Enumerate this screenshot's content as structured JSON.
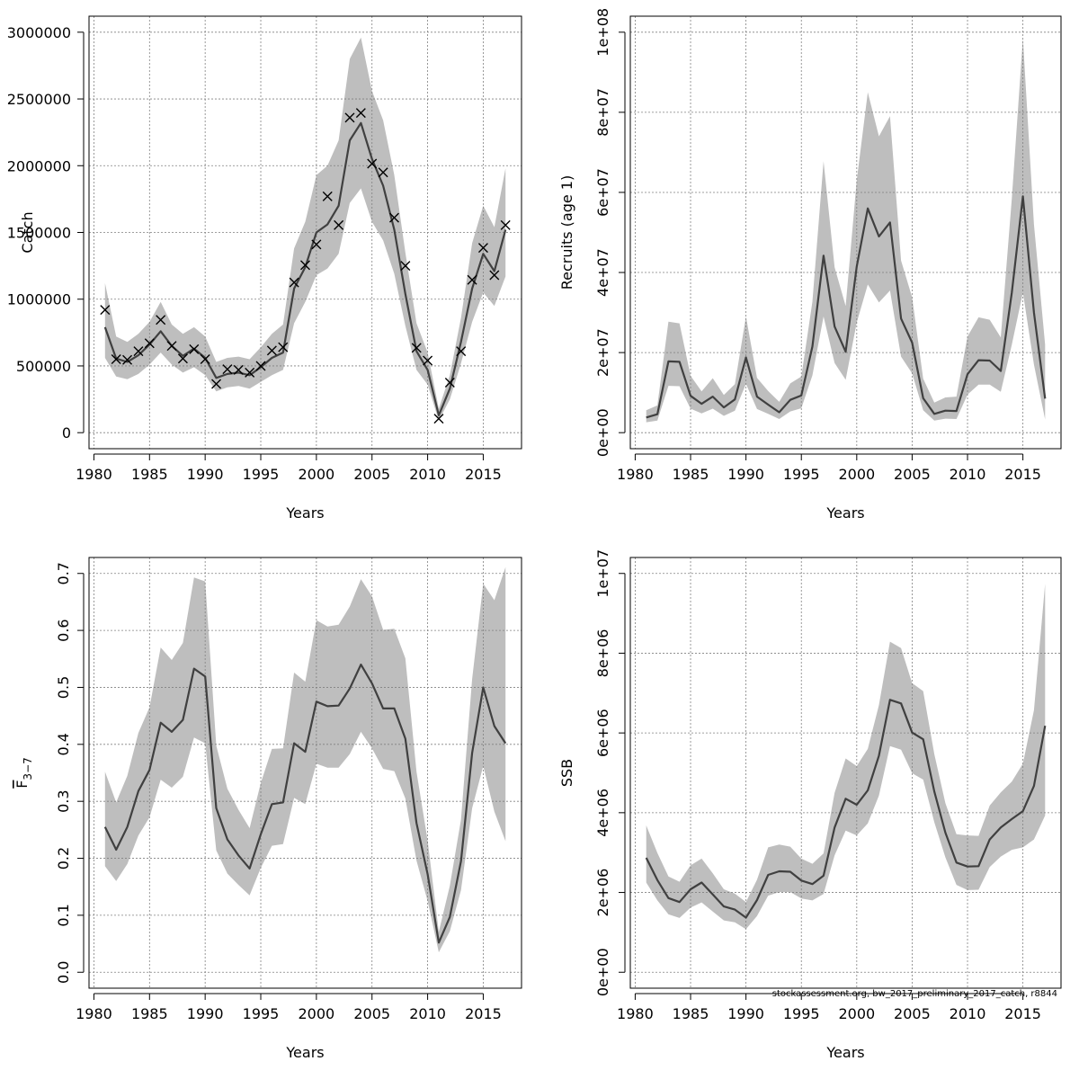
{
  "figure": {
    "footer_note": "stockassessment.org, bw_2017_preliminary_2017_catch, r8844",
    "colors": {
      "band": "#bebebe",
      "line": "#404040",
      "grid": "#808080",
      "axis": "#000000"
    }
  },
  "chart_data": [
    {
      "id": "catch",
      "type": "line",
      "title": "",
      "xlabel": "Years",
      "ylabel": "Catch",
      "xlim": [
        1980,
        2018
      ],
      "ylim": [
        0,
        3000000
      ],
      "xticks": [
        1980,
        1985,
        1990,
        1995,
        2000,
        2005,
        2010,
        2015
      ],
      "yticks": [
        0,
        500000,
        1000000,
        1500000,
        2000000,
        2500000,
        3000000
      ],
      "ytick_labels": [
        "0",
        "500000",
        "1000000",
        "1500000",
        "2000000",
        "2500000",
        "3000000"
      ],
      "grid": true,
      "x": [
        1981,
        1982,
        1983,
        1984,
        1985,
        1986,
        1987,
        1988,
        1989,
        1990,
        1991,
        1992,
        1993,
        1994,
        1995,
        1996,
        1997,
        1998,
        1999,
        2000,
        2001,
        2002,
        2003,
        2004,
        2005,
        2006,
        2007,
        2008,
        2009,
        2010,
        2011,
        2012,
        2013,
        2014,
        2015,
        2016,
        2017
      ],
      "estimate": [
        790000,
        555000,
        530000,
        580000,
        660000,
        760000,
        650000,
        575000,
        630000,
        560000,
        410000,
        440000,
        450000,
        430000,
        490000,
        560000,
        600000,
        1080000,
        1240000,
        1500000,
        1560000,
        1700000,
        2190000,
        2320000,
        2050000,
        1850000,
        1520000,
        1040000,
        610000,
        470000,
        130000,
        330000,
        680000,
        1080000,
        1340000,
        1210000,
        1520000
      ],
      "upper": [
        1120000,
        720000,
        680000,
        740000,
        830000,
        980000,
        810000,
        740000,
        790000,
        720000,
        530000,
        560000,
        570000,
        550000,
        640000,
        740000,
        810000,
        1380000,
        1580000,
        1930000,
        2000000,
        2190000,
        2800000,
        2960000,
        2560000,
        2340000,
        1930000,
        1350000,
        820000,
        600000,
        180000,
        430000,
        860000,
        1420000,
        1700000,
        1540000,
        1980000
      ],
      "lower": [
        560000,
        420000,
        400000,
        440000,
        510000,
        600000,
        510000,
        450000,
        490000,
        430000,
        310000,
        340000,
        350000,
        330000,
        380000,
        430000,
        470000,
        820000,
        980000,
        1180000,
        1230000,
        1340000,
        1720000,
        1830000,
        1580000,
        1440000,
        1190000,
        800000,
        470000,
        360000,
        90000,
        250000,
        520000,
        830000,
        1050000,
        950000,
        1170000
      ],
      "observed": [
        920000,
        550000,
        545000,
        610000,
        670000,
        845000,
        650000,
        555000,
        625000,
        550000,
        365000,
        475000,
        470000,
        450000,
        500000,
        615000,
        640000,
        1125000,
        1255000,
        1410000,
        1770000,
        1555000,
        2360000,
        2395000,
        2015000,
        1950000,
        1610000,
        1250000,
        635000,
        540000,
        105000,
        375000,
        610000,
        1145000,
        1385000,
        1180000,
        1555000
      ]
    },
    {
      "id": "recruits",
      "type": "line",
      "title": "",
      "xlabel": "Years",
      "ylabel": "Recruits (age 1)",
      "xlim": [
        1980,
        2018
      ],
      "ylim": [
        0,
        100000000
      ],
      "xticks": [
        1980,
        1985,
        1990,
        1995,
        2000,
        2005,
        2010,
        2015
      ],
      "yticks": [
        0,
        20000000,
        40000000,
        60000000,
        80000000,
        100000000
      ],
      "ytick_labels": [
        "0e+00",
        "2e+07",
        "4e+07",
        "6e+07",
        "8e+07",
        "1e+08"
      ],
      "grid": true,
      "x": [
        1981,
        1982,
        1983,
        1984,
        1985,
        1986,
        1987,
        1988,
        1989,
        1990,
        1991,
        1992,
        1993,
        1994,
        1995,
        1996,
        1997,
        1998,
        1999,
        2000,
        2001,
        2002,
        2003,
        2004,
        2005,
        2006,
        2007,
        2008,
        2009,
        2010,
        2011,
        2012,
        2013,
        2014,
        2015,
        2016,
        2017
      ],
      "estimate": [
        3800000,
        4600000,
        17800000,
        17700000,
        9200000,
        7200000,
        9000000,
        6300000,
        8300000,
        18800000,
        9000000,
        7000000,
        5100000,
        8200000,
        9300000,
        21500000,
        44200000,
        26500000,
        20200000,
        41500000,
        56000000,
        49000000,
        52500000,
        28500000,
        22500000,
        8600000,
        4700000,
        5500000,
        5400000,
        14600000,
        18100000,
        18000000,
        15400000,
        35000000,
        59000000,
        30000000,
        8500000
      ],
      "upper": [
        5600000,
        6800000,
        27700000,
        27300000,
        14200000,
        10300000,
        13600000,
        9400000,
        12100000,
        29000000,
        13700000,
        10400000,
        7700000,
        12300000,
        14000000,
        32700000,
        67800000,
        41300000,
        31600000,
        63000000,
        85000000,
        74000000,
        79000000,
        43000000,
        33800000,
        13500000,
        7500000,
        8800000,
        9000000,
        24000000,
        28800000,
        28200000,
        23800000,
        58500000,
        98500000,
        52000000,
        22000000
      ],
      "lower": [
        2600000,
        3000000,
        11700000,
        11600000,
        6000000,
        4800000,
        6000000,
        4200000,
        5500000,
        12200000,
        5900000,
        4700000,
        3400000,
        5300000,
        6100000,
        14300000,
        29000000,
        17400000,
        13200000,
        27500000,
        37000000,
        32500000,
        35500000,
        19000000,
        14800000,
        5600000,
        3000000,
        3500000,
        3400000,
        9500000,
        12000000,
        12000000,
        10200000,
        22000000,
        35000000,
        17000000,
        3300000
      ]
    },
    {
      "id": "fbar",
      "type": "line",
      "title": "",
      "xlabel": "Years",
      "ylabel": "F",
      "ylabel_sub": "3−7",
      "xlim": [
        1980,
        2018
      ],
      "ylim": [
        0.0,
        0.7
      ],
      "xticks": [
        1980,
        1985,
        1990,
        1995,
        2000,
        2005,
        2010,
        2015
      ],
      "yticks": [
        0.0,
        0.1,
        0.2,
        0.3,
        0.4,
        0.5,
        0.6,
        0.7
      ],
      "ytick_labels": [
        "0.0",
        "0.1",
        "0.2",
        "0.3",
        "0.4",
        "0.5",
        "0.6",
        "0.7"
      ],
      "grid": true,
      "x": [
        1981,
        1982,
        1983,
        1984,
        1985,
        1986,
        1987,
        1988,
        1989,
        1990,
        1991,
        1992,
        1993,
        1994,
        1995,
        1996,
        1997,
        1998,
        1999,
        2000,
        2001,
        2002,
        2003,
        2004,
        2005,
        2006,
        2007,
        2008,
        2009,
        2010,
        2011,
        2012,
        2013,
        2014,
        2015,
        2016,
        2017
      ],
      "estimate": [
        0.255,
        0.215,
        0.255,
        0.318,
        0.355,
        0.438,
        0.422,
        0.443,
        0.533,
        0.519,
        0.288,
        0.233,
        0.205,
        0.182,
        0.242,
        0.295,
        0.298,
        0.402,
        0.387,
        0.475,
        0.467,
        0.468,
        0.498,
        0.54,
        0.507,
        0.463,
        0.463,
        0.41,
        0.262,
        0.172,
        0.052,
        0.097,
        0.195,
        0.385,
        0.5,
        0.432,
        0.402
      ],
      "upper": [
        0.352,
        0.298,
        0.345,
        0.42,
        0.465,
        0.57,
        0.548,
        0.578,
        0.693,
        0.686,
        0.398,
        0.322,
        0.285,
        0.253,
        0.332,
        0.392,
        0.393,
        0.526,
        0.51,
        0.618,
        0.607,
        0.61,
        0.642,
        0.69,
        0.66,
        0.601,
        0.603,
        0.551,
        0.352,
        0.231,
        0.071,
        0.152,
        0.268,
        0.515,
        0.682,
        0.653,
        0.711
      ],
      "lower": [
        0.186,
        0.16,
        0.19,
        0.24,
        0.272,
        0.338,
        0.324,
        0.343,
        0.412,
        0.402,
        0.214,
        0.173,
        0.153,
        0.135,
        0.183,
        0.222,
        0.225,
        0.306,
        0.295,
        0.366,
        0.359,
        0.359,
        0.383,
        0.422,
        0.393,
        0.357,
        0.353,
        0.305,
        0.196,
        0.125,
        0.035,
        0.072,
        0.144,
        0.288,
        0.362,
        0.282,
        0.23
      ]
    },
    {
      "id": "ssb",
      "type": "line",
      "title": "",
      "xlabel": "Years",
      "ylabel": "SSB",
      "xlim": [
        1980,
        2018
      ],
      "ylim": [
        0,
        10000000
      ],
      "xticks": [
        1980,
        1985,
        1990,
        1995,
        2000,
        2005,
        2010,
        2015
      ],
      "yticks": [
        0,
        2000000,
        4000000,
        6000000,
        8000000,
        10000000
      ],
      "ytick_labels": [
        "0e+00",
        "2e+06",
        "4e+06",
        "6e+06",
        "8e+06",
        "1e+07"
      ],
      "grid": true,
      "x": [
        1981,
        1982,
        1983,
        1984,
        1985,
        1986,
        1987,
        1988,
        1989,
        1990,
        1991,
        1992,
        1993,
        1994,
        1995,
        1996,
        1997,
        1998,
        1999,
        2000,
        2001,
        2002,
        2003,
        2004,
        2005,
        2006,
        2007,
        2008,
        2009,
        2010,
        2011,
        2012,
        2013,
        2014,
        2015,
        2016,
        2017
      ],
      "estimate": [
        2870000,
        2310000,
        1860000,
        1760000,
        2080000,
        2250000,
        1950000,
        1650000,
        1570000,
        1370000,
        1810000,
        2440000,
        2530000,
        2520000,
        2300000,
        2210000,
        2420000,
        3630000,
        4350000,
        4200000,
        4560000,
        5430000,
        6830000,
        6740000,
        6010000,
        5840000,
        4530000,
        3500000,
        2750000,
        2650000,
        2660000,
        3330000,
        3630000,
        3840000,
        4040000,
        4670000,
        6180000
      ],
      "upper": [
        3680000,
        2990000,
        2400000,
        2270000,
        2680000,
        2850000,
        2480000,
        2080000,
        1970000,
        1760000,
        2320000,
        3130000,
        3200000,
        3150000,
        2850000,
        2720000,
        2980000,
        4500000,
        5360000,
        5170000,
        5600000,
        6700000,
        8290000,
        8130000,
        7250000,
        7050000,
        5470000,
        4240000,
        3460000,
        3430000,
        3420000,
        4180000,
        4510000,
        4780000,
        5230000,
        6570000,
        9740000
      ],
      "lower": [
        2250000,
        1800000,
        1450000,
        1360000,
        1620000,
        1750000,
        1520000,
        1300000,
        1250000,
        1080000,
        1410000,
        1920000,
        2010000,
        2010000,
        1850000,
        1800000,
        1960000,
        2930000,
        3550000,
        3430000,
        3730000,
        4430000,
        5670000,
        5580000,
        4990000,
        4830000,
        3760000,
        2880000,
        2190000,
        2060000,
        2070000,
        2640000,
        2900000,
        3070000,
        3130000,
        3330000,
        3930000
      ]
    }
  ]
}
